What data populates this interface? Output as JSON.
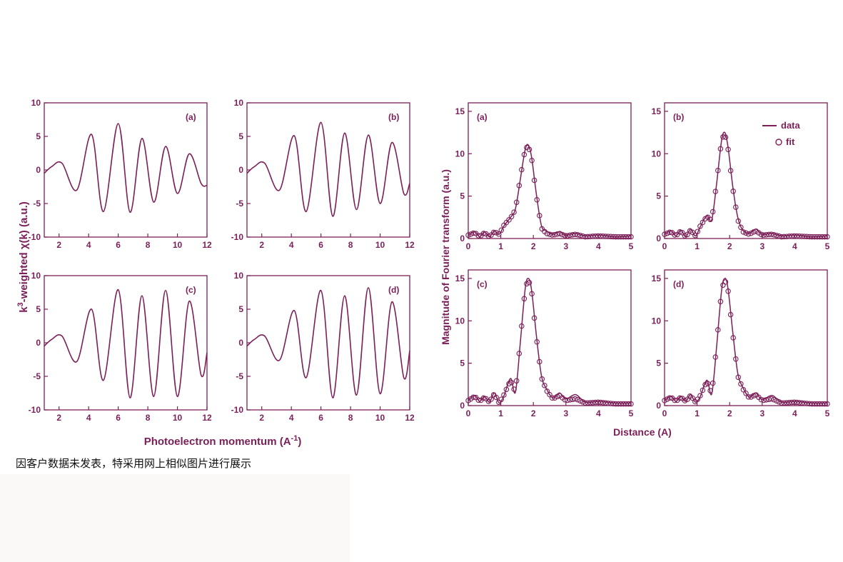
{
  "colors": {
    "plot": "#7b1f58",
    "caption": "#111111"
  },
  "left_figure": {
    "ylabel_pre": "k",
    "ylabel_sup": "3",
    "ylabel_post": "-weighted χ(k) (a.u.)",
    "xlabel_pre": "Photoelectron momentum (A",
    "xlabel_sup": "-1",
    "xlabel_post": ")"
  },
  "right_figure": {
    "ylabel": "Magnitude of Fourier transform (a.u.)",
    "xlabel": "Distance (A)",
    "legend": [
      {
        "label": "data",
        "marker": "line"
      },
      {
        "label": "fit",
        "marker": "open-circle"
      }
    ]
  },
  "caption": "因客户数据未发表，特采用网上相似图片进行展示",
  "chart_data": [
    {
      "type": "line",
      "panel": "(a)",
      "group": "chi",
      "xlim": [
        1,
        12
      ],
      "ylim": [
        -10,
        10
      ],
      "xticks": [
        2,
        4,
        6,
        8,
        10,
        12
      ],
      "yticks": [
        -10,
        -5,
        0,
        5,
        10
      ],
      "x": [
        1.0,
        1.5,
        2.2,
        3.2,
        4.2,
        5.0,
        6.0,
        6.8,
        7.6,
        8.4,
        9.2,
        10.0,
        10.8,
        11.6,
        12.0
      ],
      "values": [
        -0.5,
        0.5,
        1.0,
        -3.0,
        5.3,
        -6.2,
        6.9,
        -6.3,
        4.7,
        -4.8,
        3.5,
        -3.5,
        2.4,
        -2.0,
        -2.3
      ]
    },
    {
      "type": "line",
      "panel": "(b)",
      "group": "chi",
      "xlim": [
        1,
        12
      ],
      "ylim": [
        -10,
        10
      ],
      "xticks": [
        2,
        4,
        6,
        8,
        10,
        12
      ],
      "yticks": [
        -10,
        -5,
        0,
        5,
        10
      ],
      "x": [
        1.0,
        1.5,
        2.2,
        3.2,
        4.2,
        5.0,
        6.0,
        6.8,
        7.6,
        8.4,
        9.2,
        10.0,
        10.8,
        11.6,
        12.0
      ],
      "values": [
        -0.5,
        0.5,
        1.0,
        -3.0,
        5.1,
        -6.2,
        7.1,
        -6.9,
        5.5,
        -5.9,
        5.2,
        -5.0,
        4.1,
        -3.5,
        -2.0
      ]
    },
    {
      "type": "line",
      "panel": "(c)",
      "group": "chi",
      "xlim": [
        1,
        12
      ],
      "ylim": [
        -10,
        10
      ],
      "xticks": [
        2,
        4,
        6,
        8,
        10,
        12
      ],
      "yticks": [
        -10,
        -5,
        0,
        5,
        10
      ],
      "x": [
        1.0,
        1.5,
        2.2,
        3.2,
        4.2,
        5.0,
        6.0,
        6.8,
        7.6,
        8.4,
        9.2,
        10.0,
        10.8,
        11.6,
        12.0
      ],
      "values": [
        -0.5,
        0.5,
        1.0,
        -2.8,
        5.0,
        -5.6,
        7.9,
        -8.2,
        7.0,
        -8.0,
        7.8,
        -8.0,
        6.2,
        -4.8,
        -1.5
      ]
    },
    {
      "type": "line",
      "panel": "(d)",
      "group": "chi",
      "xlim": [
        1,
        12
      ],
      "ylim": [
        -10,
        10
      ],
      "xticks": [
        2,
        4,
        6,
        8,
        10,
        12
      ],
      "yticks": [
        -10,
        -5,
        0,
        5,
        10
      ],
      "x": [
        1.0,
        1.5,
        2.2,
        3.2,
        4.2,
        5.0,
        6.0,
        6.8,
        7.6,
        8.4,
        9.2,
        10.0,
        10.8,
        11.6,
        12.0
      ],
      "values": [
        -0.5,
        0.5,
        1.0,
        -2.6,
        4.8,
        -5.2,
        7.8,
        -8.2,
        7.0,
        -7.8,
        8.2,
        -7.6,
        6.1,
        -5.2,
        -1.2
      ]
    },
    {
      "type": "line",
      "panel": "(a)",
      "group": "ft",
      "xlim": [
        0,
        5
      ],
      "ylim": [
        0,
        16
      ],
      "xticks": [
        0,
        1,
        2,
        3,
        4,
        5
      ],
      "yticks": [
        0,
        5,
        10,
        15
      ],
      "x": [
        0,
        0.2,
        0.35,
        0.5,
        0.65,
        0.8,
        0.95,
        1.1,
        1.3,
        1.45,
        1.6,
        1.75,
        1.85,
        1.95,
        2.1,
        2.25,
        2.4,
        2.6,
        2.8,
        3.0,
        3.3,
        3.6,
        4.0,
        4.5,
        5.0
      ],
      "series": [
        {
          "name": "data",
          "values": [
            0.4,
            0.8,
            0.2,
            0.8,
            0.2,
            0.9,
            0.5,
            1.5,
            2.5,
            3.5,
            7.0,
            10.5,
            11.0,
            9.5,
            5.0,
            1.5,
            0.9,
            0.5,
            0.8,
            0.4,
            0.6,
            0.3,
            0.4,
            0.2,
            0.3
          ]
        },
        {
          "name": "fit",
          "values": [
            0.4,
            0.7,
            0.2,
            0.7,
            0.2,
            0.8,
            0.5,
            1.6,
            2.4,
            3.4,
            7.2,
            10.6,
            10.9,
            9.3,
            4.8,
            1.2,
            0.6,
            0.4,
            0.6,
            0.3,
            0.5,
            0.2,
            0.3,
            0.2,
            0.2
          ]
        }
      ]
    },
    {
      "type": "line",
      "panel": "(b)",
      "group": "ft",
      "xlim": [
        0,
        5
      ],
      "ylim": [
        0,
        16
      ],
      "xticks": [
        0,
        1,
        2,
        3,
        4,
        5
      ],
      "yticks": [
        0,
        5,
        10,
        15
      ],
      "x": [
        0,
        0.2,
        0.35,
        0.5,
        0.65,
        0.8,
        0.95,
        1.1,
        1.3,
        1.45,
        1.6,
        1.75,
        1.85,
        1.95,
        2.1,
        2.25,
        2.4,
        2.6,
        2.8,
        3.0,
        3.3,
        3.6,
        4.0,
        4.5,
        5.0
      ],
      "series": [
        {
          "name": "data",
          "values": [
            0.5,
            0.9,
            0.3,
            1.0,
            0.2,
            1.1,
            0.3,
            1.4,
            2.7,
            2.2,
            6.5,
            11.5,
            12.5,
            10.8,
            6.0,
            2.5,
            1.0,
            0.6,
            1.1,
            0.5,
            0.6,
            0.3,
            0.4,
            0.2,
            0.3
          ]
        },
        {
          "name": "fit",
          "values": [
            0.5,
            0.8,
            0.3,
            0.9,
            0.2,
            1.0,
            0.3,
            1.5,
            2.6,
            2.1,
            6.7,
            11.6,
            12.4,
            10.6,
            5.8,
            2.2,
            0.8,
            0.5,
            0.9,
            0.4,
            0.5,
            0.2,
            0.3,
            0.2,
            0.2
          ]
        }
      ]
    },
    {
      "type": "line",
      "panel": "(c)",
      "group": "ft",
      "xlim": [
        0,
        5
      ],
      "ylim": [
        0,
        16
      ],
      "xticks": [
        0,
        1,
        2,
        3,
        4,
        5
      ],
      "yticks": [
        0,
        5,
        10,
        15
      ],
      "x": [
        0,
        0.2,
        0.35,
        0.5,
        0.65,
        0.8,
        0.95,
        1.1,
        1.3,
        1.45,
        1.6,
        1.75,
        1.85,
        1.95,
        2.1,
        2.25,
        2.4,
        2.6,
        2.8,
        3.0,
        3.3,
        3.6,
        4.0,
        4.5,
        5.0
      ],
      "series": [
        {
          "name": "data",
          "values": [
            0.6,
            1.2,
            0.5,
            1.1,
            0.4,
            1.5,
            0.3,
            1.2,
            3.2,
            1.6,
            7.5,
            13.8,
            15.0,
            13.5,
            8.0,
            3.5,
            2.0,
            0.9,
            1.5,
            0.8,
            1.3,
            0.4,
            0.5,
            0.3,
            0.3
          ]
        },
        {
          "name": "fit",
          "values": [
            0.6,
            1.1,
            0.5,
            1.0,
            0.4,
            1.4,
            0.3,
            1.3,
            3.0,
            1.5,
            7.7,
            13.9,
            14.9,
            13.3,
            7.8,
            3.3,
            1.8,
            0.8,
            1.2,
            0.6,
            0.8,
            0.3,
            0.4,
            0.2,
            0.2
          ]
        }
      ]
    },
    {
      "type": "line",
      "panel": "(d)",
      "group": "ft",
      "xlim": [
        0,
        5
      ],
      "ylim": [
        0,
        16
      ],
      "xticks": [
        0,
        1,
        2,
        3,
        4,
        5
      ],
      "yticks": [
        0,
        5,
        10,
        15
      ],
      "x": [
        0,
        0.2,
        0.35,
        0.5,
        0.65,
        0.8,
        0.95,
        1.1,
        1.3,
        1.45,
        1.6,
        1.75,
        1.85,
        1.95,
        2.1,
        2.25,
        2.4,
        2.6,
        2.8,
        3.0,
        3.3,
        3.6,
        4.0,
        4.5,
        5.0
      ],
      "series": [
        {
          "name": "data",
          "values": [
            0.6,
            1.1,
            0.5,
            1.1,
            0.5,
            1.3,
            0.4,
            1.1,
            3.0,
            1.4,
            7.0,
            13.5,
            15.0,
            13.8,
            8.5,
            3.8,
            2.2,
            1.0,
            1.5,
            0.7,
            1.2,
            0.4,
            0.5,
            0.3,
            0.3
          ]
        },
        {
          "name": "fit",
          "values": [
            0.6,
            1.0,
            0.5,
            1.0,
            0.5,
            1.2,
            0.4,
            1.2,
            2.9,
            1.3,
            7.2,
            13.6,
            14.9,
            13.6,
            8.3,
            3.5,
            2.0,
            0.9,
            1.3,
            0.6,
            0.8,
            0.3,
            0.4,
            0.2,
            0.2
          ]
        }
      ]
    }
  ]
}
